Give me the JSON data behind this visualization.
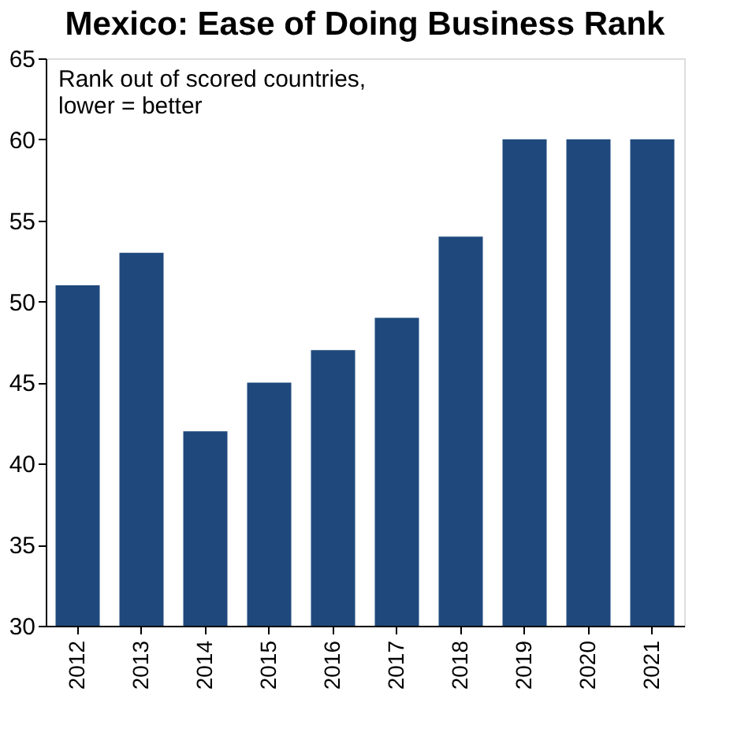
{
  "chart_data": {
    "type": "bar",
    "title": "Mexico: Ease of Doing Business Rank",
    "annotations": [
      "Rank out of scored countries,\nlower = better"
    ],
    "categories": [
      "2012",
      "2013",
      "2014",
      "2015",
      "2016",
      "2017",
      "2018",
      "2019",
      "2020",
      "2021"
    ],
    "values": [
      51,
      53,
      42,
      45,
      47,
      49,
      54,
      60,
      60,
      60
    ],
    "color": "#1f497d",
    "ylim": [
      30,
      65
    ],
    "yticks": [
      30,
      35,
      40,
      45,
      50,
      55,
      60,
      65
    ],
    "grid": false
  }
}
